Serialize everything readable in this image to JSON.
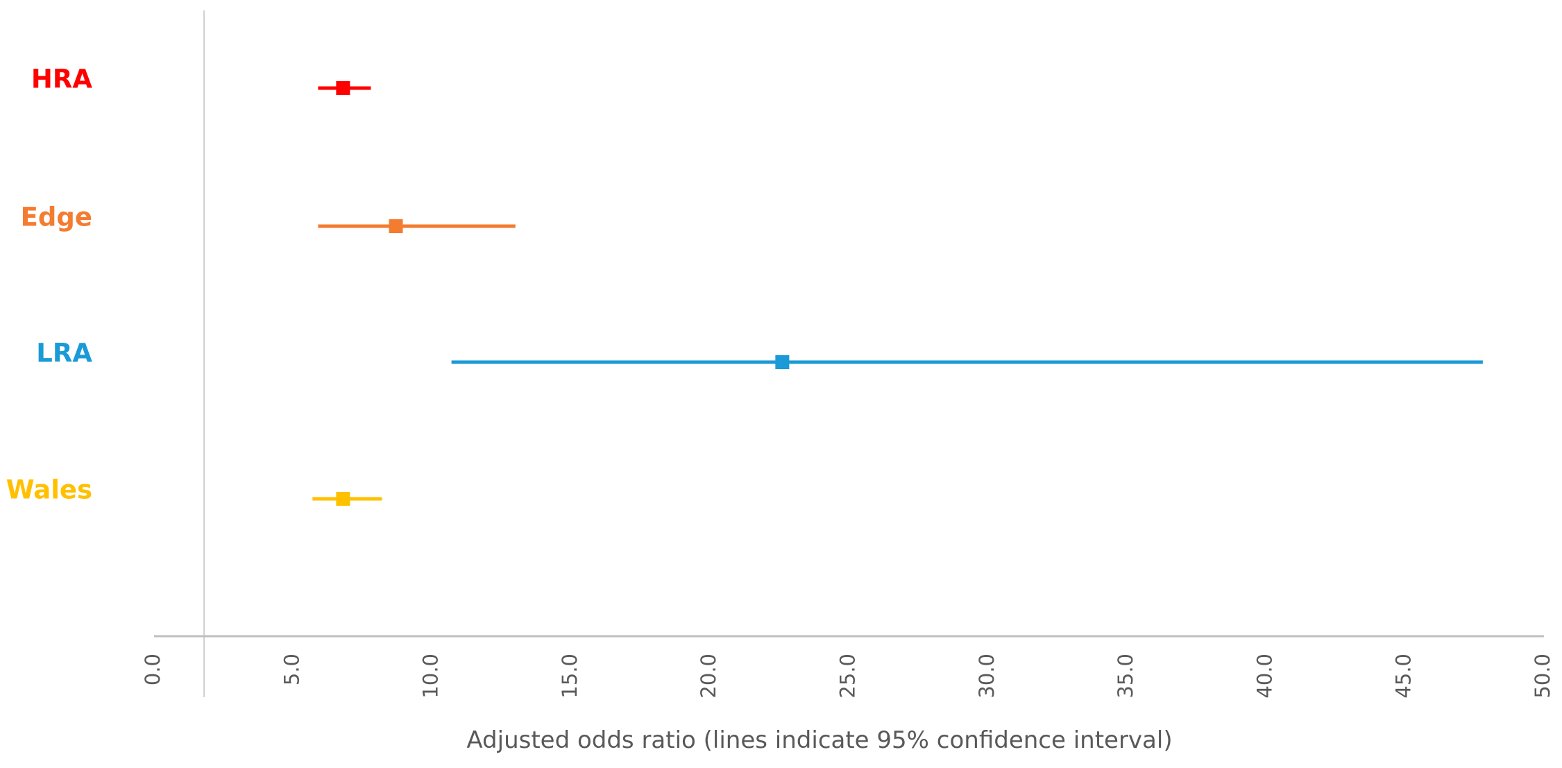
{
  "chart_data": {
    "type": "forest",
    "title": "",
    "xlabel": "Adjusted odds ratio (lines indicate 95% confidence interval)",
    "ylabel": "",
    "xlim": [
      0,
      50
    ],
    "xticks": [
      "0.0",
      "5.0",
      "10.0",
      "15.0",
      "20.0",
      "25.0",
      "30.0",
      "35.0",
      "40.0",
      "45.0",
      "50.0"
    ],
    "reference_line": 1.8,
    "grid": false,
    "legend": "none",
    "series": [
      {
        "label": "HRA",
        "estimate": 6.8,
        "ci_low": 5.9,
        "ci_high": 7.8,
        "color": "#ff0000"
      },
      {
        "label": "Edge",
        "estimate": 8.7,
        "ci_low": 5.9,
        "ci_high": 13.0,
        "color": "#f47c30"
      },
      {
        "label": "LRA",
        "estimate": 22.6,
        "ci_low": 10.7,
        "ci_high": 47.8,
        "color": "#1a9ad6"
      },
      {
        "label": "Wales",
        "estimate": 6.8,
        "ci_low": 5.7,
        "ci_high": 8.2,
        "color": "#ffc000"
      }
    ]
  }
}
